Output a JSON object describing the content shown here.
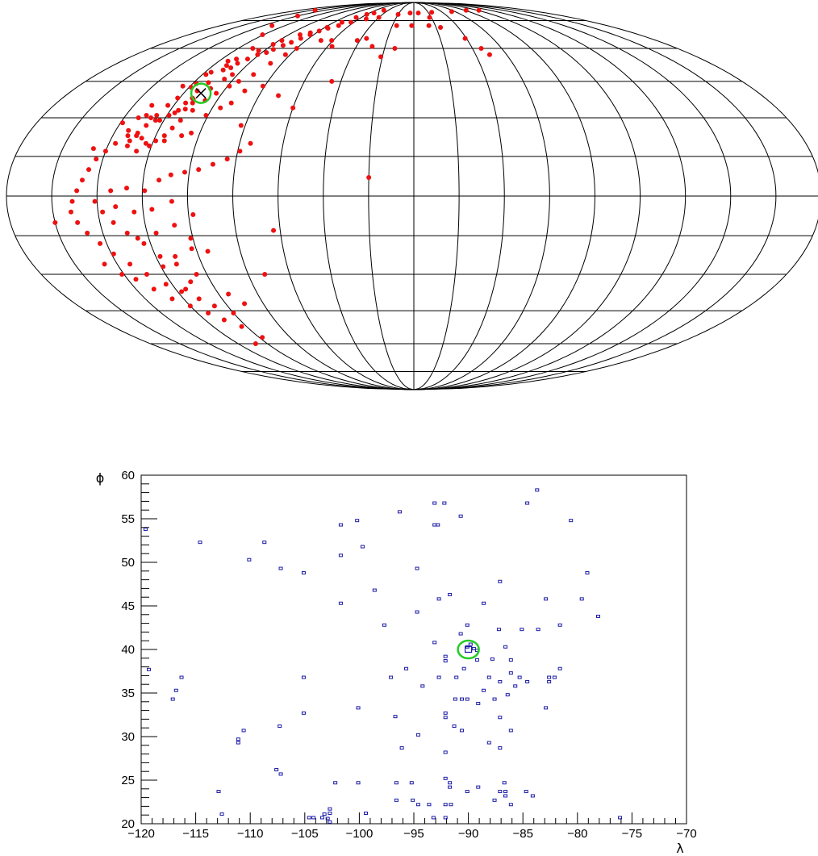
{
  "chart_data": [
    {
      "type": "scatter",
      "projection": "mollweide",
      "grid": true,
      "colors": {
        "point": "#ee1111",
        "marker_ring": "#22cc22",
        "marker_cross": "#000000",
        "grid": "#000000"
      },
      "marker": {
        "lon": -111,
        "lat": 40
      },
      "points": [
        [
          -113.5,
          38
        ],
        [
          -112.5,
          37.5
        ],
        [
          -115,
          36
        ],
        [
          -116,
          33
        ],
        [
          -117,
          32
        ],
        [
          -114,
          41
        ],
        [
          -118,
          44
        ],
        [
          -112,
          44.5
        ],
        [
          -116.5,
          49
        ],
        [
          -119,
          42.5
        ],
        [
          -121,
          38
        ],
        [
          -123,
          35
        ],
        [
          -125,
          31
        ],
        [
          -127,
          27
        ],
        [
          -129,
          23
        ],
        [
          -131,
          19
        ],
        [
          -111,
          50
        ],
        [
          -112,
          52
        ],
        [
          -114.5,
          54
        ],
        [
          -108,
          51
        ],
        [
          -107,
          53
        ],
        [
          -104,
          55
        ],
        [
          -101,
          57
        ],
        [
          -97,
          58
        ],
        [
          -95,
          59.5
        ],
        [
          -92,
          61.5
        ],
        [
          -89,
          63
        ],
        [
          -86,
          65
        ],
        [
          -83,
          67
        ],
        [
          -80,
          69
        ],
        [
          -76,
          70.5
        ],
        [
          -70,
          72
        ],
        [
          -63,
          74
        ],
        [
          -52,
          76
        ],
        [
          -40,
          77
        ],
        [
          -20,
          79
        ],
        [
          -5,
          80
        ],
        [
          6,
          80
        ],
        [
          25,
          80.5
        ],
        [
          55,
          81
        ],
        [
          82,
          82
        ],
        [
          102,
          82
        ],
        [
          -110,
          60
        ],
        [
          -100,
          62
        ],
        [
          -121,
          67
        ],
        [
          -132,
          72
        ],
        [
          -140,
          78
        ],
        [
          -155,
          82
        ],
        [
          -103,
          48
        ],
        [
          -105,
          46
        ],
        [
          -108,
          42
        ],
        [
          -111.5,
          36
        ],
        [
          -113,
          33.5
        ],
        [
          -119,
          31
        ],
        [
          -122,
          29
        ],
        [
          -124,
          29
        ],
        [
          -127,
          30
        ],
        [
          -130,
          31
        ],
        [
          -133,
          30
        ],
        [
          -134,
          25
        ],
        [
          -131,
          21
        ],
        [
          -126,
          17
        ],
        [
          -121,
          19
        ],
        [
          -115,
          21
        ],
        [
          -108,
          23
        ],
        [
          -104,
          24
        ],
        [
          -101,
          31
        ],
        [
          -96,
          34
        ],
        [
          -92,
          36
        ],
        [
          -89,
          41
        ],
        [
          -81,
          43
        ],
        [
          -70,
          39
        ],
        [
          -60,
          34
        ],
        [
          -45,
          45
        ],
        [
          -21,
          56
        ],
        [
          -2,
          72
        ],
        [
          -16,
          72
        ],
        [
          14,
          72
        ],
        [
          18,
          77
        ],
        [
          24,
          71
        ],
        [
          39,
          65
        ],
        [
          46,
          60
        ],
        [
          49,
          57
        ],
        [
          -13,
          60
        ],
        [
          -29,
          61
        ],
        [
          -36,
          65
        ],
        [
          -42,
          64
        ],
        [
          -57,
          61
        ],
        [
          -61,
          64
        ],
        [
          -69,
          64
        ],
        [
          -80,
          60
        ],
        [
          -83,
          57
        ],
        [
          -87,
          53
        ],
        [
          -91,
          48
        ],
        [
          -96,
          45
        ],
        [
          -99,
          43
        ],
        [
          -103,
          40
        ],
        [
          -106,
          37
        ],
        [
          -109,
          33
        ],
        [
          -112,
          29
        ],
        [
          -114,
          26
        ],
        [
          -116,
          23
        ],
        [
          -119,
          21
        ],
        [
          -123,
          20
        ],
        [
          -126,
          22
        ],
        [
          -129,
          24
        ],
        [
          -133,
          23
        ],
        [
          -137,
          20
        ],
        [
          -140,
          17
        ],
        [
          -143,
          14
        ],
        [
          -145,
          10
        ],
        [
          -147,
          6
        ],
        [
          -149,
          2
        ],
        [
          -151,
          -2
        ],
        [
          -152,
          -6
        ],
        [
          -150,
          -10
        ],
        [
          -147,
          -14
        ],
        [
          -143,
          -18
        ],
        [
          -139,
          -22
        ],
        [
          -134,
          -26
        ],
        [
          -129,
          -30
        ],
        [
          -123,
          -34
        ],
        [
          -118,
          -37
        ],
        [
          -112,
          -40
        ],
        [
          -107,
          -43
        ],
        [
          -100,
          -46
        ],
        [
          -112,
          -26
        ],
        [
          -118,
          -23
        ],
        [
          -123,
          -18
        ],
        [
          -129,
          -14
        ],
        [
          -134,
          -10
        ],
        [
          -138,
          -6
        ],
        [
          -141,
          -2
        ],
        [
          -134,
          2
        ],
        [
          -127,
          3
        ],
        [
          -119,
          2
        ],
        [
          -113,
          6
        ],
        [
          -108,
          8
        ],
        [
          -102,
          9
        ],
        [
          -96,
          10
        ],
        [
          -90,
          12
        ],
        [
          -84,
          14
        ],
        [
          -79,
          17
        ],
        [
          -75,
          20
        ],
        [
          -82,
          27
        ],
        [
          -98,
          -7
        ],
        [
          -107,
          -2
        ],
        [
          -116,
          -5
        ],
        [
          -124,
          -6
        ],
        [
          -132,
          -4
        ],
        [
          -125,
          -16
        ],
        [
          -116,
          -14
        ],
        [
          -107,
          -11
        ],
        [
          -101,
          -16
        ],
        [
          -95,
          -21
        ],
        [
          -63,
          -13
        ],
        [
          -20,
          7
        ],
        [
          -72,
          -30
        ],
        [
          -102,
          -20
        ],
        [
          -111,
          -23
        ],
        [
          -119,
          -27
        ],
        [
          -160,
          -10
        ],
        [
          -146,
          18
        ],
        [
          -139,
          28
        ],
        [
          -131,
          35
        ],
        [
          -124,
          43
        ],
        [
          -118,
          48
        ],
        [
          -111,
          55
        ],
        [
          -104,
          59
        ],
        [
          -98,
          64
        ],
        [
          -91,
          67
        ],
        [
          -85,
          68
        ],
        [
          -78,
          71
        ],
        [
          -72,
          74
        ],
        [
          -66,
          77
        ],
        [
          -60,
          79
        ],
        [
          -54,
          80
        ],
        [
          -47,
          82
        ],
        [
          -146,
          -26
        ],
        [
          -141,
          -30
        ],
        [
          -136,
          -32
        ],
        [
          -131,
          -36
        ],
        [
          -126,
          -40
        ],
        [
          -120,
          -43
        ],
        [
          -114,
          -46
        ],
        [
          -109,
          -49
        ],
        [
          -103,
          -52
        ],
        [
          -98,
          -57
        ],
        [
          -105,
          -30
        ],
        [
          -110,
          -33
        ],
        [
          -115,
          -36
        ],
        [
          -95,
          -38
        ],
        [
          -90,
          -42
        ],
        [
          -108,
          -60
        ]
      ]
    },
    {
      "type": "scatter",
      "xlabel": "λ",
      "ylabel": "ϕ",
      "xlim": [
        -120,
        -70
      ],
      "ylim": [
        20,
        60
      ],
      "xticks": [
        -120,
        -115,
        -110,
        -105,
        -100,
        -95,
        -90,
        -85,
        -80,
        -75,
        -70
      ],
      "yticks": [
        20,
        25,
        30,
        35,
        40,
        45,
        50,
        55,
        60
      ],
      "xtick_labels": [
        "−120",
        "−115",
        "−110",
        "−105",
        "−100",
        "−95",
        "−90",
        "−85",
        "−80",
        "−75",
        "−70"
      ],
      "ytick_labels": [
        "20",
        "25",
        "30",
        "35",
        "40",
        "45",
        "50",
        "55",
        "60"
      ],
      "colors": {
        "point": "#1a1aa6",
        "marker_ring": "#22cc22"
      },
      "marker": {
        "x": -90,
        "y": 40
      },
      "points": [
        [
          -119.6,
          53.8
        ],
        [
          -119.3,
          37.7
        ],
        [
          -117.1,
          34.3
        ],
        [
          -116.8,
          35.3
        ],
        [
          -116.3,
          36.8
        ],
        [
          -114.6,
          52.3
        ],
        [
          -112.9,
          23.7
        ],
        [
          -112.6,
          21.1
        ],
        [
          -111.1,
          29.3
        ],
        [
          -111.1,
          29.7
        ],
        [
          -110.6,
          30.7
        ],
        [
          -110.1,
          50.3
        ],
        [
          -108.7,
          52.3
        ],
        [
          -107.6,
          26.2
        ],
        [
          -107.3,
          31.2
        ],
        [
          -107.2,
          25.7
        ],
        [
          -107.2,
          49.3
        ],
        [
          -105.1,
          48.8
        ],
        [
          -105.1,
          36.8
        ],
        [
          -105.1,
          32.7
        ],
        [
          -104.6,
          20.7
        ],
        [
          -104.2,
          20.7
        ],
        [
          -103.4,
          20.7
        ],
        [
          -103.2,
          21.1
        ],
        [
          -102.9,
          20.6
        ],
        [
          -102.7,
          21.2
        ],
        [
          -102.7,
          21.7
        ],
        [
          -102.7,
          20.2
        ],
        [
          -102.2,
          24.7
        ],
        [
          -101.7,
          54.3
        ],
        [
          -101.7,
          50.8
        ],
        [
          -101.7,
          45.3
        ],
        [
          -100.2,
          54.8
        ],
        [
          -100.1,
          33.3
        ],
        [
          -100.1,
          24.7
        ],
        [
          -99.7,
          51.8
        ],
        [
          -99.4,
          21.2
        ],
        [
          -98.6,
          46.8
        ],
        [
          -97.7,
          42.8
        ],
        [
          -97.1,
          36.8
        ],
        [
          -96.7,
          32.3
        ],
        [
          -96.6,
          24.7
        ],
        [
          -96.6,
          22.7
        ],
        [
          -96.3,
          55.8
        ],
        [
          -96.1,
          28.7
        ],
        [
          -95.7,
          37.8
        ],
        [
          -95.2,
          24.7
        ],
        [
          -95.1,
          22.7
        ],
        [
          -94.7,
          44.3
        ],
        [
          -94.7,
          49.3
        ],
        [
          -94.6,
          22.2
        ],
        [
          -94.6,
          30.2
        ],
        [
          -94.2,
          35.8
        ],
        [
          -93.6,
          22.2
        ],
        [
          -93.2,
          20.7
        ],
        [
          -93.1,
          54.3
        ],
        [
          -93.1,
          56.8
        ],
        [
          -93.1,
          40.8
        ],
        [
          -92.8,
          54.3
        ],
        [
          -92.7,
          45.8
        ],
        [
          -92.7,
          36.8
        ],
        [
          -92.2,
          56.8
        ],
        [
          -92.1,
          20.7
        ],
        [
          -92.1,
          22.2
        ],
        [
          -92.1,
          25.2
        ],
        [
          -92.1,
          28.2
        ],
        [
          -92.1,
          32.2
        ],
        [
          -92.1,
          32.7
        ],
        [
          -92.1,
          38.7
        ],
        [
          -92.1,
          39.2
        ],
        [
          -91.7,
          46.3
        ],
        [
          -91.7,
          24.2
        ],
        [
          -91.7,
          24.7
        ],
        [
          -91.6,
          22.2
        ],
        [
          -91.3,
          31.2
        ],
        [
          -91.2,
          34.3
        ],
        [
          -91.1,
          36.8
        ],
        [
          -90.7,
          41.8
        ],
        [
          -90.7,
          55.3
        ],
        [
          -90.6,
          30.7
        ],
        [
          -90.6,
          34.3
        ],
        [
          -90.4,
          37.8
        ],
        [
          -90.1,
          42.8
        ],
        [
          -90.1,
          34.3
        ],
        [
          -90.1,
          23.7
        ],
        [
          -90.1,
          40.3
        ],
        [
          -89.8,
          40.6
        ],
        [
          -89.5,
          40.1
        ],
        [
          -89.2,
          39.9
        ],
        [
          -89.2,
          38.8
        ],
        [
          -89.1,
          33.8
        ],
        [
          -89.1,
          24.2
        ],
        [
          -88.6,
          45.3
        ],
        [
          -88.6,
          35.3
        ],
        [
          -88.1,
          29.3
        ],
        [
          -88.1,
          36.8
        ],
        [
          -87.8,
          38.9
        ],
        [
          -87.6,
          22.7
        ],
        [
          -87.6,
          34.3
        ],
        [
          -87.2,
          42.3
        ],
        [
          -87.1,
          47.8
        ],
        [
          -87.1,
          32.2
        ],
        [
          -87.1,
          28.7
        ],
        [
          -87.1,
          36.3
        ],
        [
          -87.1,
          23.7
        ],
        [
          -86.7,
          24.7
        ],
        [
          -86.6,
          23.2
        ],
        [
          -86.6,
          23.7
        ],
        [
          -86.6,
          40.3
        ],
        [
          -86.4,
          34.8
        ],
        [
          -86.1,
          37.3
        ],
        [
          -86.1,
          38.8
        ],
        [
          -86.1,
          30.7
        ],
        [
          -86.1,
          22.2
        ],
        [
          -85.7,
          35.8
        ],
        [
          -85.3,
          36.8
        ],
        [
          -85.1,
          42.3
        ],
        [
          -84.7,
          23.7
        ],
        [
          -84.6,
          56.8
        ],
        [
          -84.6,
          36.3
        ],
        [
          -84.1,
          23.2
        ],
        [
          -83.7,
          58.3
        ],
        [
          -83.6,
          42.3
        ],
        [
          -82.9,
          45.8
        ],
        [
          -82.9,
          33.3
        ],
        [
          -82.6,
          36.3
        ],
        [
          -82.6,
          36.8
        ],
        [
          -82.1,
          36.8
        ],
        [
          -81.6,
          42.8
        ],
        [
          -81.6,
          37.8
        ],
        [
          -80.6,
          54.8
        ],
        [
          -79.6,
          45.8
        ],
        [
          -79.1,
          48.8
        ],
        [
          -78.1,
          43.8
        ],
        [
          -76.1,
          20.7
        ]
      ]
    }
  ]
}
